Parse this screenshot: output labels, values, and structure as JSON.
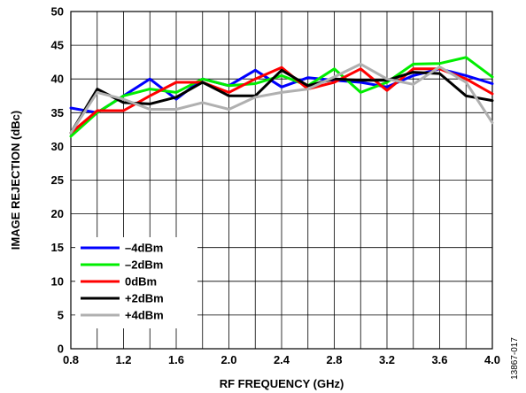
{
  "chart_data": {
    "type": "line",
    "title": "",
    "xlabel": "RF FREQUENCY (GHz)",
    "ylabel": "IMAGE REJECTION (dBc)",
    "xlim": [
      0.8,
      4.0
    ],
    "ylim": [
      0,
      50
    ],
    "x_ticks": [
      "0.8",
      "1.2",
      "1.6",
      "2.0",
      "2.4",
      "2.8",
      "3.2",
      "3.6",
      "4.0"
    ],
    "y_ticks": [
      "0",
      "5",
      "10",
      "15",
      "20",
      "25",
      "30",
      "35",
      "40",
      "45",
      "50"
    ],
    "grid": true,
    "legend_position": "bottom-left",
    "x": [
      0.8,
      1.0,
      1.2,
      1.4,
      1.6,
      1.8,
      2.0,
      2.2,
      2.4,
      2.6,
      2.8,
      3.0,
      3.2,
      3.4,
      3.6,
      3.8,
      4.0
    ],
    "series": [
      {
        "name": "–4dBm",
        "color": "#0000ff",
        "values": [
          35.7,
          35.0,
          37.5,
          40.0,
          37.0,
          40.0,
          39.0,
          41.3,
          38.8,
          40.2,
          39.8,
          39.5,
          38.8,
          40.5,
          41.5,
          40.5,
          39.3
        ]
      },
      {
        "name": "–2dBm",
        "color": "#00ee00",
        "values": [
          31.5,
          35.0,
          37.5,
          38.5,
          38.0,
          40.0,
          39.0,
          39.3,
          40.5,
          39.0,
          41.5,
          38.0,
          39.5,
          42.2,
          42.3,
          43.2,
          40.3
        ]
      },
      {
        "name": "0dBm",
        "color": "#ff0000",
        "values": [
          32.0,
          35.3,
          35.3,
          37.5,
          39.5,
          39.5,
          38.0,
          40.0,
          41.7,
          38.5,
          39.5,
          41.5,
          38.3,
          41.5,
          41.5,
          40.0,
          37.8
        ]
      },
      {
        "name": "+2dBm",
        "color": "#000000",
        "values": [
          32.0,
          38.5,
          36.5,
          36.3,
          37.3,
          39.5,
          37.5,
          37.5,
          41.3,
          39.0,
          40.0,
          39.8,
          39.8,
          41.0,
          40.8,
          37.5,
          36.8
        ]
      },
      {
        "name": "+4dBm",
        "color": "#b0b0b0",
        "values": [
          32.0,
          38.0,
          37.0,
          35.5,
          35.5,
          36.5,
          35.5,
          37.3,
          38.0,
          38.5,
          40.3,
          42.2,
          40.0,
          39.2,
          41.8,
          39.5,
          33.5
        ]
      }
    ]
  },
  "figure_id": "13867-017"
}
